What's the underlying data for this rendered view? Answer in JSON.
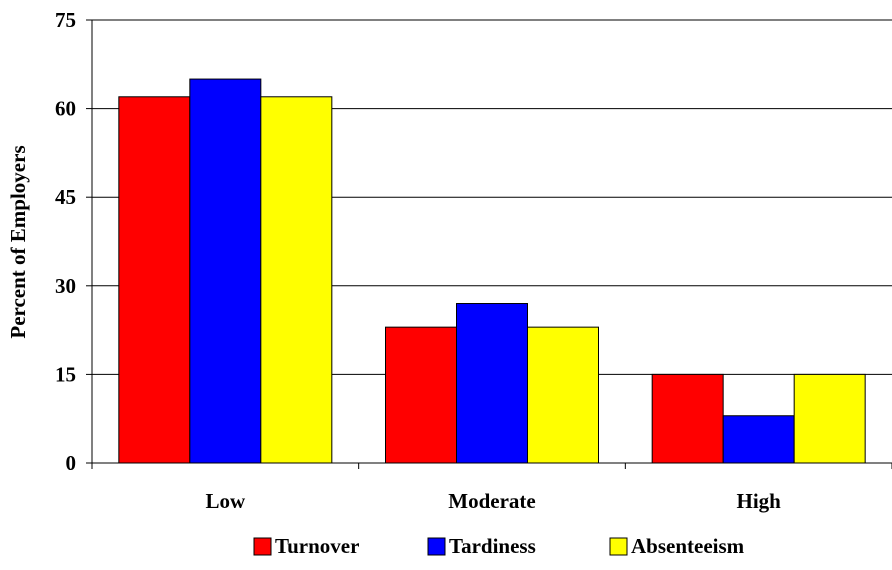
{
  "chart_data": {
    "type": "bar",
    "title": "",
    "xlabel": "",
    "ylabel": "Percent of Employers",
    "categories": [
      "Low",
      "Moderate",
      "High"
    ],
    "series": [
      {
        "name": "Turnover",
        "color": "#ff0000",
        "values": [
          62,
          23,
          15
        ]
      },
      {
        "name": "Tardiness",
        "color": "#0000ff",
        "values": [
          65,
          27,
          8
        ]
      },
      {
        "name": "Absenteeism",
        "color": "#ffff00",
        "values": [
          62,
          23,
          15
        ]
      }
    ],
    "ylim": [
      0,
      75
    ],
    "yticks": [
      0,
      15,
      30,
      45,
      60,
      75
    ],
    "grid": true,
    "legend": "bottom"
  }
}
